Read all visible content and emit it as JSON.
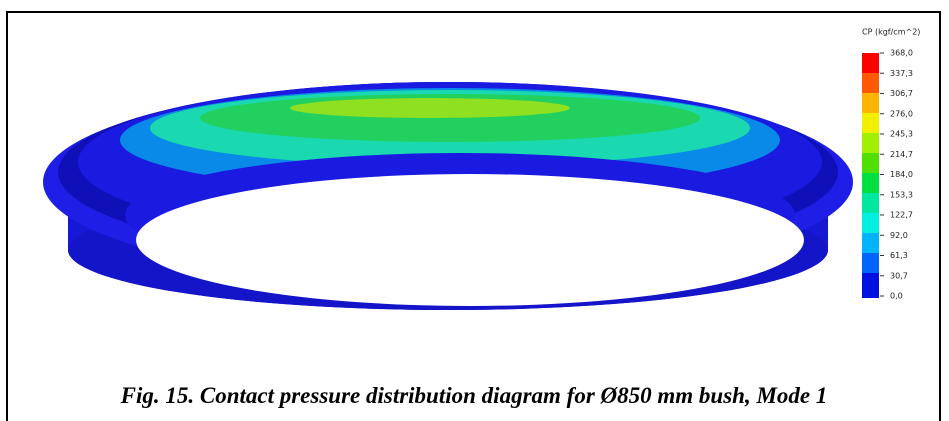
{
  "figure": {
    "legend": {
      "title": "CP (kgf/cm^2)",
      "labels": [
        "368,0",
        "337,3",
        "306,7",
        "276,0",
        "245,3",
        "214,7",
        "184,0",
        "153,3",
        "122,7",
        "92,0",
        "61,3",
        "30,7",
        "0,0"
      ]
    },
    "caption": "Fig. 15. Contact pressure distribution diagram for Ø850 mm bush, Mode 1"
  }
}
